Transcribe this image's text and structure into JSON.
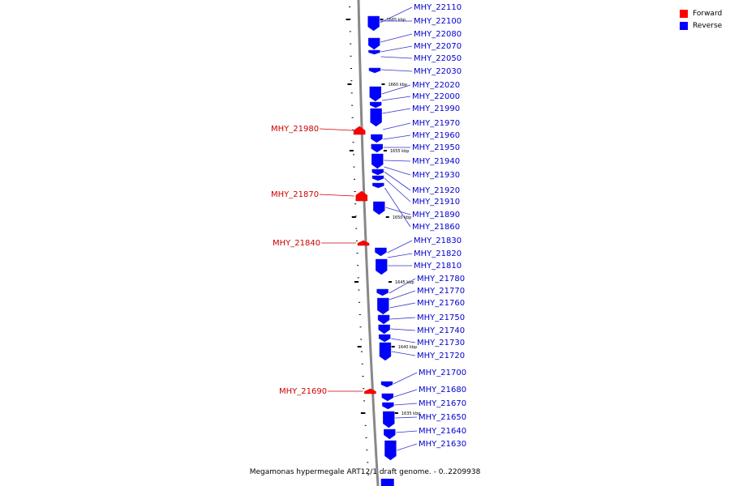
{
  "title": "Megamonas hypermegale ART12/1 draft genome. - 0..2209938",
  "legend": [
    {
      "label": "Forward",
      "color": "#ff0000"
    },
    {
      "label": "Reverse",
      "color": "#0000ff"
    }
  ],
  "colors": {
    "forward": "#ff0000",
    "reverse": "#0000ff",
    "forward_label": "#cc0000",
    "reverse_label": "#0000cc",
    "axis": "#888888"
  },
  "scale_marks": [
    "1665 kbp",
    "1660 kbp",
    "1655 kbp",
    "1650 kbp",
    "1645 kbp",
    "1640 kbp",
    "1635 kbp"
  ],
  "forward_genes": [
    "MHY_21980",
    "MHY_21870",
    "MHY_21840",
    "MHY_21690"
  ],
  "reverse_genes": [
    "MHY_22110",
    "MHY_22100",
    "MHY_22080",
    "MHY_22070",
    "MHY_22050",
    "MHY_22030",
    "MHY_22020",
    "MHY_22000",
    "MHY_21990",
    "MHY_21970",
    "MHY_21960",
    "MHY_21950",
    "MHY_21940",
    "MHY_21930",
    "MHY_21920",
    "MHY_21910",
    "MHY_21890",
    "MHY_21860",
    "MHY_21830",
    "MHY_21820",
    "MHY_21810",
    "MHY_21780",
    "MHY_21770",
    "MHY_21760",
    "MHY_21750",
    "MHY_21740",
    "MHY_21730",
    "MHY_21720",
    "MHY_21700",
    "MHY_21680",
    "MHY_21670",
    "MHY_21650",
    "MHY_21640",
    "MHY_21630"
  ]
}
